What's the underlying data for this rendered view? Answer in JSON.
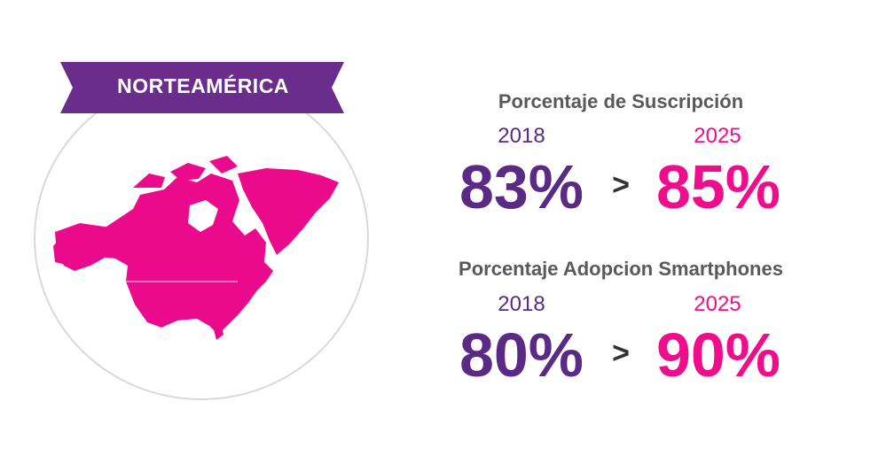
{
  "colors": {
    "purple": "#5b2a84",
    "ribbon": "#6b2d8c",
    "pink": "#ee0e8b",
    "map": "#ec0a8c",
    "title_gray": "#595959"
  },
  "region": {
    "label": "NORTEAMÉRICA"
  },
  "subscription": {
    "title": "Porcentaje de Suscripción",
    "from_year": "2018",
    "from_value": "83%",
    "separator": ">",
    "to_year": "2025",
    "to_value": "85%"
  },
  "smartphones": {
    "title": "Porcentaje Adopcion Smartphones",
    "from_year": "2018",
    "from_value": "80%",
    "separator": ">",
    "to_year": "2025",
    "to_value": "90%"
  }
}
